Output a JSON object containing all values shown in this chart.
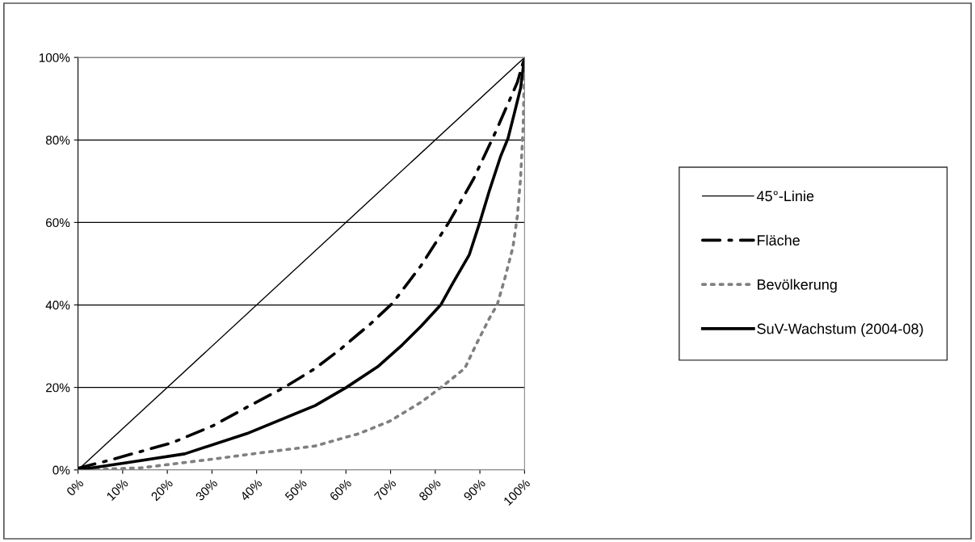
{
  "chart_data": {
    "type": "line",
    "xlim": [
      0,
      100
    ],
    "ylim": [
      0,
      100
    ],
    "xticks": [
      {
        "value": 0,
        "label": "0%"
      },
      {
        "value": 10,
        "label": "10%"
      },
      {
        "value": 20,
        "label": "20%"
      },
      {
        "value": 30,
        "label": "30%"
      },
      {
        "value": 40,
        "label": "40%"
      },
      {
        "value": 50,
        "label": "50%"
      },
      {
        "value": 60,
        "label": "60%"
      },
      {
        "value": 70,
        "label": "70%"
      },
      {
        "value": 80,
        "label": "80%"
      },
      {
        "value": 90,
        "label": "90%"
      },
      {
        "value": 100,
        "label": "100%"
      }
    ],
    "yticks": [
      {
        "value": 0,
        "label": "0%"
      },
      {
        "value": 20,
        "label": "20%"
      },
      {
        "value": 40,
        "label": "40%"
      },
      {
        "value": 60,
        "label": "60%"
      },
      {
        "value": 80,
        "label": "80%"
      },
      {
        "value": 100,
        "label": "100%"
      }
    ],
    "grid": "y",
    "legend": "right",
    "series": [
      {
        "name": "45°-Linie",
        "color": "#000000",
        "line_style": "solid",
        "x": [
          0,
          100
        ],
        "values": [
          0,
          100
        ]
      },
      {
        "name": "Fläche",
        "color": "#000000",
        "line_style": "dashdot",
        "x": [
          0,
          7.2,
          21.1,
          30.2,
          38.5,
          46.2,
          53.1,
          58.7,
          65.7,
          70.5,
          76.8,
          83.1,
          88.6,
          93.5,
          98.4,
          100
        ],
        "values": [
          0.4,
          2.4,
          6.6,
          10.7,
          15.6,
          20,
          24.6,
          29.2,
          35.6,
          40.5,
          49.5,
          60.1,
          70.6,
          81.9,
          94,
          100
        ]
      },
      {
        "name": "Bevölkerung",
        "color": "#808080",
        "line_style": "dotted",
        "x": [
          0,
          14.1,
          31.5,
          42,
          53.1,
          62.9,
          69.8,
          76.8,
          81.3,
          86.6,
          89.3,
          92.1,
          93.9,
          95.6,
          97.4,
          98.4,
          99.1,
          99.7,
          100
        ],
        "values": [
          0,
          0.5,
          2.8,
          4.3,
          5.8,
          8.8,
          11.8,
          16.4,
          20,
          24.6,
          30.7,
          36.7,
          40.1,
          46.5,
          54,
          61.6,
          70.6,
          83.4,
          100
        ]
      },
      {
        "name": "SuV-Wachstum (2004-08)",
        "color": "#000000",
        "line_style": "solid",
        "x": [
          0,
          10.7,
          23.9,
          37.8,
          53.1,
          60.1,
          67.1,
          72.6,
          76.8,
          81.3,
          83.8,
          87.6,
          90,
          92.1,
          94.6,
          96.3,
          97.7,
          99.1,
          100
        ],
        "values": [
          0,
          1.7,
          3.9,
          8.8,
          15.6,
          20,
          25,
          30.3,
          34.8,
          40.1,
          45,
          52.1,
          60.1,
          67.6,
          75.9,
          80.4,
          86.4,
          92.5,
          100
        ]
      }
    ]
  }
}
